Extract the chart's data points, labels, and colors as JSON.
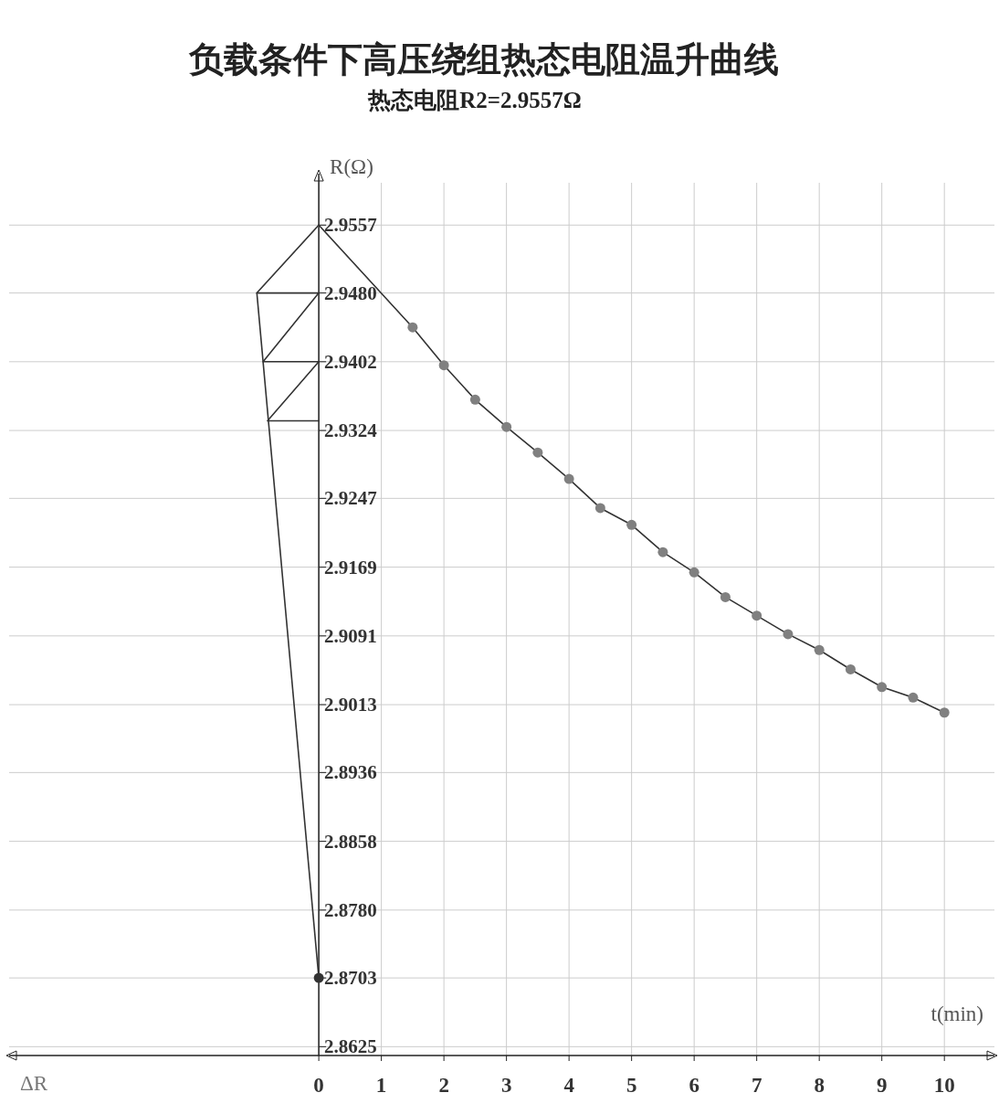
{
  "chart_data": {
    "type": "scatter",
    "title": "负载条件下高压绕组热态电阻温升曲线",
    "subtitle": "热态电阻R2=2.9557Ω",
    "xlabel": "t(min)",
    "ylabel": "R(Ω)",
    "annotations": [
      "ΔR"
    ],
    "xlim": [
      -4.95,
      10.8
    ],
    "ylim": [
      2.8615,
      2.9605
    ],
    "xticks": [
      0,
      1,
      2,
      3,
      4,
      5,
      6,
      7,
      8,
      9,
      10
    ],
    "yticks": [
      2.9557,
      {
        "value": 2.948,
        "label": "2.9480"
      },
      2.9402,
      2.9324,
      2.9247,
      2.9169,
      2.9091,
      2.9013,
      2.8936,
      2.8858,
      {
        "value": 2.878,
        "label": "2.8780"
      },
      2.8703,
      2.8625
    ],
    "grid": true,
    "series": [
      {
        "type": "line",
        "color": "#333333",
        "x": [
          0,
          1.5,
          2,
          2.5,
          3,
          3.5,
          4,
          4.5,
          5,
          5.5,
          6,
          6.5,
          7,
          7.5,
          8,
          8.5,
          9,
          9.5,
          10
        ],
        "values": [
          2.9557,
          2.9441,
          2.9398,
          2.9359,
          2.9328,
          2.9299,
          2.9269,
          2.9236,
          2.9217,
          2.9186,
          2.9163,
          2.9135,
          2.9114,
          2.9093,
          2.9075,
          2.9053,
          2.9033,
          2.9021,
          2.9004
        ]
      },
      {
        "type": "scatter",
        "color": "#808080",
        "x": [
          1.5,
          2,
          2.5,
          3,
          3.5,
          4,
          4.5,
          5,
          5.5,
          6,
          6.5,
          7,
          7.5,
          8,
          8.5,
          9,
          9.5,
          10
        ],
        "values": [
          2.9441,
          2.9398,
          2.9359,
          2.9328,
          2.9299,
          2.9269,
          2.9236,
          2.9217,
          2.9186,
          2.9163,
          2.9135,
          2.9114,
          2.9093,
          2.9075,
          2.9053,
          2.9033,
          2.9021,
          2.9004
        ]
      },
      {
        "type": "line",
        "color": "#333333",
        "x": [
          0,
          -0.99,
          0,
          -0.89,
          0,
          -0.82,
          0
        ],
        "values": [
          2.9557,
          2.948,
          2.948,
          2.9402,
          2.9402,
          2.9335,
          2.9335
        ]
      },
      {
        "type": "line",
        "color": "#333333",
        "x": [
          -0.99,
          0
        ],
        "values": [
          2.948,
          2.8703
        ]
      },
      {
        "type": "scatter",
        "color": "#333333",
        "x": [
          0
        ],
        "values": [
          2.8703
        ]
      }
    ]
  }
}
